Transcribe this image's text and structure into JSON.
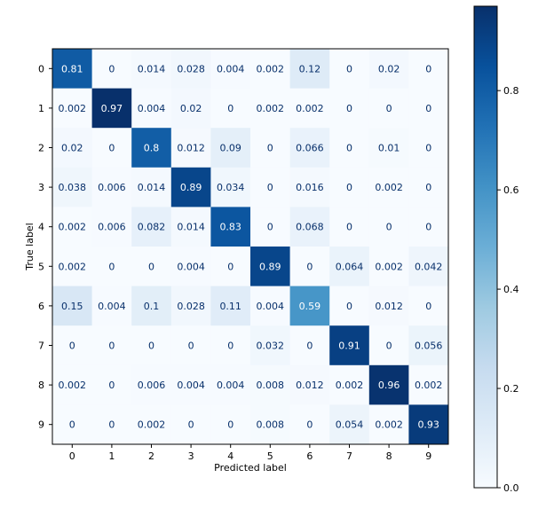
{
  "chart_data": {
    "type": "heatmap",
    "title": "",
    "xlabel": "Predicted label",
    "ylabel": "True label",
    "x_categories": [
      "0",
      "1",
      "2",
      "3",
      "4",
      "5",
      "6",
      "7",
      "8",
      "9"
    ],
    "y_categories": [
      "0",
      "1",
      "2",
      "3",
      "4",
      "5",
      "6",
      "7",
      "8",
      "9"
    ],
    "values": [
      [
        0.81,
        0,
        0.014,
        0.028,
        0.004,
        0.002,
        0.12,
        0,
        0.02,
        0
      ],
      [
        0.002,
        0.97,
        0.004,
        0.02,
        0,
        0.002,
        0.002,
        0,
        0,
        0
      ],
      [
        0.02,
        0,
        0.8,
        0.012,
        0.09,
        0,
        0.066,
        0,
        0.01,
        0
      ],
      [
        0.038,
        0.006,
        0.014,
        0.89,
        0.034,
        0,
        0.016,
        0,
        0.002,
        0
      ],
      [
        0.002,
        0.006,
        0.082,
        0.014,
        0.83,
        0,
        0.068,
        0,
        0,
        0
      ],
      [
        0.002,
        0,
        0,
        0.004,
        0,
        0.89,
        0,
        0.064,
        0.002,
        0.042
      ],
      [
        0.15,
        0.004,
        0.1,
        0.028,
        0.11,
        0.004,
        0.59,
        0,
        0.012,
        0
      ],
      [
        0,
        0,
        0,
        0,
        0,
        0.032,
        0,
        0.91,
        0,
        0.056
      ],
      [
        0.002,
        0,
        0.006,
        0.004,
        0.004,
        0.008,
        0.012,
        0.002,
        0.96,
        0.002
      ],
      [
        0,
        0,
        0.002,
        0,
        0,
        0.008,
        0,
        0.054,
        0.002,
        0.93
      ]
    ],
    "colormap": "Blues",
    "colorbar": {
      "range": [
        0,
        0.97
      ],
      "ticks": [
        0.0,
        0.2,
        0.4,
        0.6,
        0.8
      ],
      "tick_labels": [
        "0.0",
        "0.2",
        "0.4",
        "0.6",
        "0.8"
      ]
    },
    "grid": false
  }
}
